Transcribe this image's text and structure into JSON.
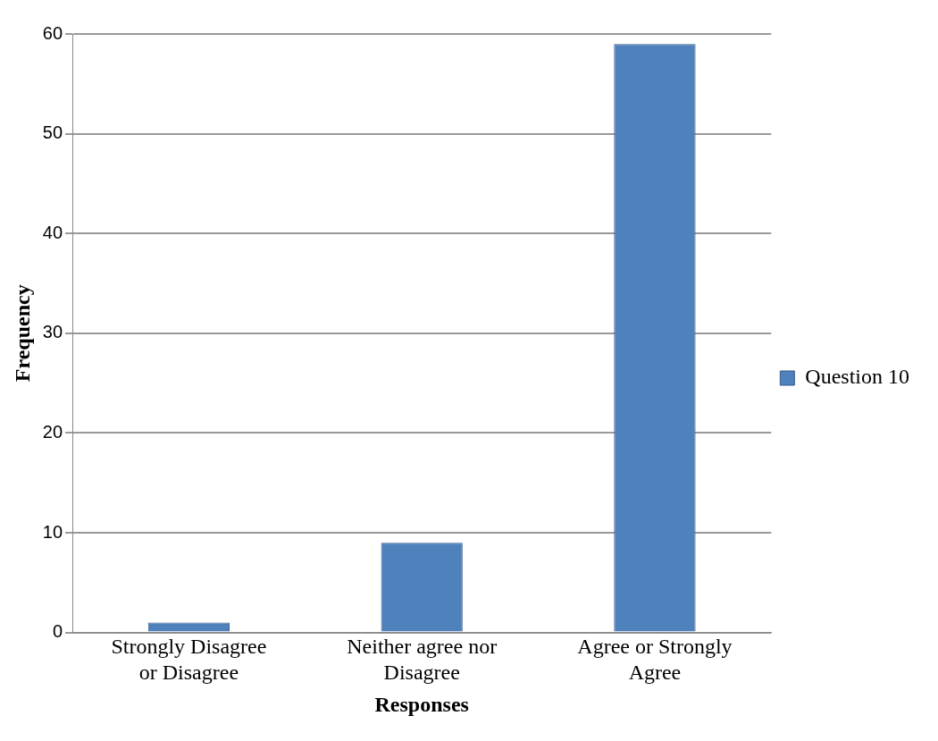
{
  "chart_data": {
    "type": "bar",
    "xlabel": "Responses",
    "ylabel": "Frequency",
    "categories": [
      "Strongly Disagree or Disagree",
      "Neither agree nor Disagree",
      "Agree or Strongly Agree"
    ],
    "series": [
      {
        "name": "Question 10",
        "color": "#4f81bd",
        "values": [
          1,
          9,
          59
        ]
      }
    ],
    "ylim": [
      0,
      60
    ],
    "yticks": [
      0,
      10,
      20,
      30,
      40,
      50,
      60
    ],
    "grid": "y",
    "legend": "right"
  }
}
